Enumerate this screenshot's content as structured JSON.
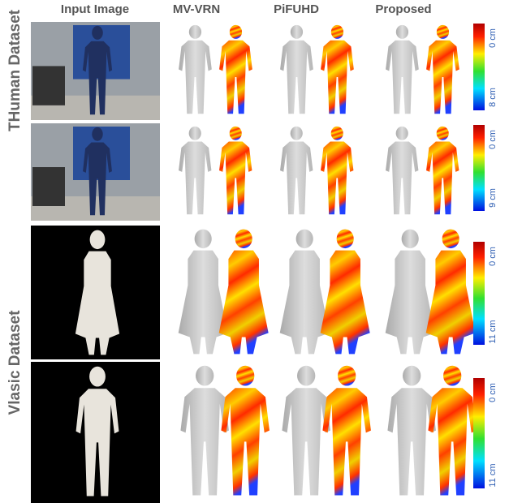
{
  "columns": [
    "Input Image",
    "MV-VRN",
    "PiFUHD",
    "Proposed"
  ],
  "datasets": [
    "THuman Dataset",
    "Vlasic Dataset"
  ],
  "colorbars": [
    {
      "top": "0 cm",
      "bottom": "8 cm"
    },
    {
      "top": "0 cm",
      "bottom": "9 cm"
    },
    {
      "top": "0 cm",
      "bottom": "11 cm"
    },
    {
      "top": "0 cm",
      "bottom": "11 cm"
    }
  ]
}
